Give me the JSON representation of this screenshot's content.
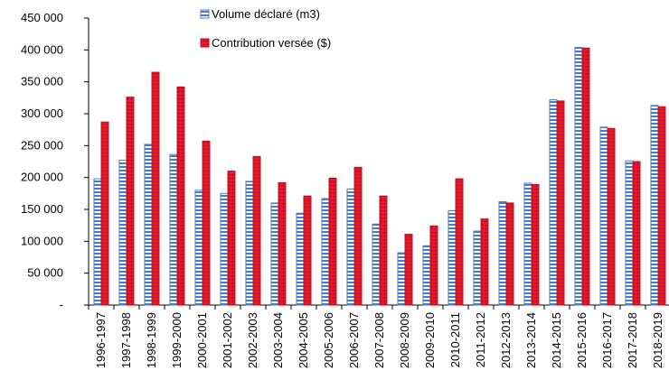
{
  "chart_data": {
    "type": "bar",
    "title": "",
    "xlabel": "",
    "ylabel": "",
    "ylim": [
      0,
      450000
    ],
    "yticks": [
      0,
      50000,
      100000,
      150000,
      200000,
      250000,
      300000,
      350000,
      400000,
      450000
    ],
    "ytick_labels": [
      "-",
      "50 000",
      "100 000",
      "150 000",
      "200 000",
      "250 000",
      "300 000",
      "350 000",
      "400 000",
      "450 000"
    ],
    "grid": false,
    "legend_position": "top-center",
    "categories": [
      "1996-1997",
      "1997-1998",
      "1998-1999",
      "1999-2000",
      "2000-2001",
      "2001-2002",
      "2002-2003",
      "2003-2004",
      "2004-2005",
      "2005-2006",
      "2006-2007",
      "2007-2008",
      "2008-2009",
      "2009-2010",
      "2010-2011",
      "2011-2012",
      "2012-2013",
      "2013-2014",
      "2014-2015",
      "2015-2016",
      "2016-2017",
      "2017-2018",
      "2018-2019"
    ],
    "series": [
      {
        "name": "Volume déclaré (m3)",
        "color": "#4a7cc4",
        "pattern": "blue-white-horizontal-stripes",
        "values": [
          198000,
          227000,
          252000,
          236000,
          180000,
          175000,
          194000,
          160000,
          144000,
          167000,
          182000,
          127000,
          82000,
          93000,
          148000,
          116000,
          162000,
          191000,
          322000,
          404000,
          279000,
          226000,
          313000
        ]
      },
      {
        "name": "Contribution versée ($)",
        "color": "#e0182b",
        "pattern": "red-with-dots",
        "values": [
          287000,
          326000,
          365000,
          342000,
          257000,
          210000,
          233000,
          192000,
          171000,
          199000,
          216000,
          171000,
          111000,
          124000,
          198000,
          135000,
          160000,
          189000,
          320000,
          403000,
          277000,
          225000,
          311000
        ]
      }
    ]
  }
}
